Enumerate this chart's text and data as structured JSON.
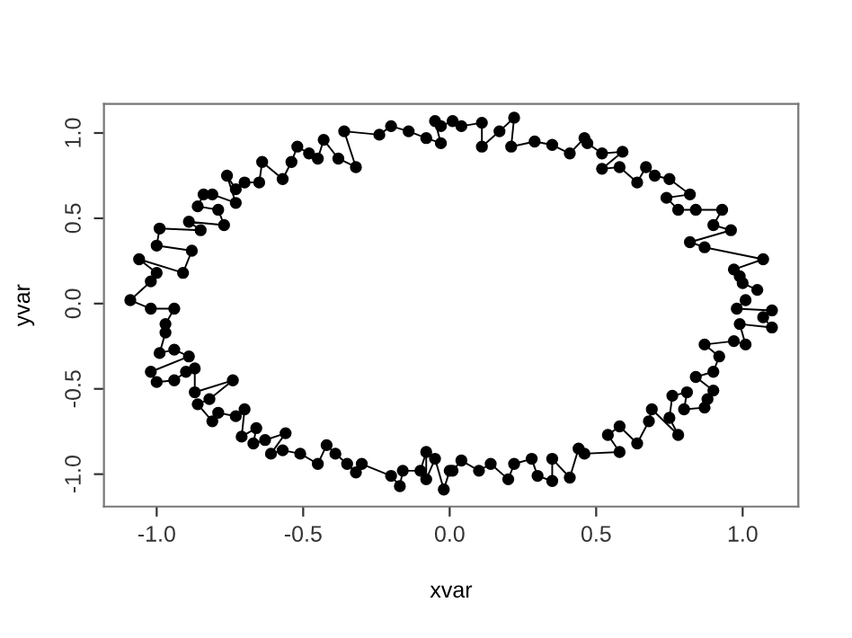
{
  "chart_data": {
    "type": "line",
    "xlabel": "xvar",
    "ylabel": "yvar",
    "marker": "circle",
    "line_style": "solid",
    "grid": false,
    "legend": false,
    "xlim": [
      -1.18,
      1.19
    ],
    "ylim": [
      -1.19,
      1.17
    ],
    "xticks": [
      {
        "value": -1,
        "label": "-1.0"
      },
      {
        "value": -0.5,
        "label": "-0.5"
      },
      {
        "value": 0,
        "label": "0.0"
      },
      0.5,
      {
        "value": 1,
        "label": "1.0"
      }
    ],
    "yticks": [
      {
        "value": -1,
        "label": "-1.0"
      },
      {
        "value": -0.5,
        "label": "-0.5"
      },
      {
        "value": 0,
        "label": "0.0"
      },
      0.5,
      {
        "value": 1,
        "label": "1.0"
      }
    ],
    "series": [
      {
        "color": "#000000",
        "x": [
          1.05,
          1.0,
          0.99,
          0.97,
          1.07,
          0.87,
          0.82,
          0.96,
          0.9,
          0.93,
          0.84,
          0.78,
          0.74,
          0.82,
          0.75,
          0.7,
          0.67,
          0.64,
          0.58,
          0.52,
          0.59,
          0.52,
          0.47,
          0.46,
          0.41,
          0.35,
          0.29,
          0.21,
          0.22,
          0.17,
          0.11,
          0.11,
          0.04,
          0.01,
          -0.03,
          -0.05,
          -0.03,
          -0.08,
          -0.14,
          -0.2,
          -0.24,
          -0.36,
          -0.32,
          -0.38,
          -0.43,
          -0.45,
          -0.48,
          -0.52,
          -0.54,
          -0.57,
          -0.64,
          -0.65,
          -0.7,
          -0.73,
          -0.76,
          -0.73,
          -0.81,
          -0.84,
          -0.86,
          -0.79,
          -0.77,
          -0.89,
          -0.85,
          -0.99,
          -1.0,
          -0.88,
          -0.91,
          -1.06,
          -1.0,
          -1.02,
          -1.09,
          -1.02,
          -0.94,
          -0.97,
          -0.97,
          -0.99,
          -0.94,
          -0.89,
          -1.02,
          -1.0,
          -0.94,
          -0.9,
          -0.87,
          -0.87,
          -0.74,
          -0.82,
          -0.86,
          -0.81,
          -0.79,
          -0.73,
          -0.7,
          -0.71,
          -0.66,
          -0.67,
          -0.63,
          -0.56,
          -0.61,
          -0.57,
          -0.51,
          -0.45,
          -0.42,
          -0.39,
          -0.35,
          -0.32,
          -0.3,
          -0.2,
          -0.17,
          -0.16,
          -0.1,
          -0.08,
          -0.08,
          -0.05,
          -0.02,
          0.0,
          0.01,
          0.04,
          0.1,
          0.14,
          0.2,
          0.22,
          0.28,
          0.3,
          0.35,
          0.35,
          0.41,
          0.44,
          0.46,
          0.58,
          0.54,
          0.58,
          0.64,
          0.68,
          0.69,
          0.78,
          0.75,
          0.76,
          0.81,
          0.8,
          0.87,
          0.88,
          0.9,
          0.84,
          0.9,
          0.92,
          0.87,
          0.97,
          1.01,
          0.99,
          1.1,
          1.07,
          1.1,
          0.98,
          1.01
        ],
        "values": [
          0.08,
          0.12,
          0.16,
          0.2,
          0.26,
          0.33,
          0.36,
          0.43,
          0.46,
          0.55,
          0.55,
          0.55,
          0.62,
          0.64,
          0.73,
          0.75,
          0.8,
          0.71,
          0.8,
          0.79,
          0.89,
          0.88,
          0.94,
          0.97,
          0.88,
          0.93,
          0.95,
          0.92,
          1.09,
          1.01,
          0.92,
          1.06,
          1.04,
          1.07,
          1.04,
          1.07,
          0.94,
          0.97,
          1.01,
          1.04,
          0.99,
          1.01,
          0.8,
          0.85,
          0.96,
          0.85,
          0.88,
          0.92,
          0.83,
          0.73,
          0.83,
          0.71,
          0.71,
          0.67,
          0.75,
          0.59,
          0.64,
          0.64,
          0.57,
          0.55,
          0.46,
          0.48,
          0.43,
          0.44,
          0.34,
          0.31,
          0.18,
          0.26,
          0.18,
          0.13,
          0.02,
          -0.03,
          -0.03,
          -0.12,
          -0.17,
          -0.29,
          -0.27,
          -0.31,
          -0.4,
          -0.46,
          -0.45,
          -0.4,
          -0.38,
          -0.52,
          -0.45,
          -0.56,
          -0.59,
          -0.69,
          -0.64,
          -0.66,
          -0.62,
          -0.78,
          -0.73,
          -0.82,
          -0.8,
          -0.76,
          -0.88,
          -0.86,
          -0.88,
          -0.94,
          -0.83,
          -0.88,
          -0.94,
          -0.99,
          -0.94,
          -1.01,
          -1.07,
          -0.98,
          -0.98,
          -0.87,
          -1.03,
          -0.91,
          -1.09,
          -0.98,
          -0.98,
          -0.92,
          -0.98,
          -0.94,
          -1.03,
          -0.94,
          -0.91,
          -1.01,
          -1.04,
          -0.91,
          -1.02,
          -0.85,
          -0.88,
          -0.87,
          -0.77,
          -0.72,
          -0.82,
          -0.69,
          -0.62,
          -0.77,
          -0.67,
          -0.54,
          -0.52,
          -0.62,
          -0.61,
          -0.56,
          -0.51,
          -0.43,
          -0.4,
          -0.31,
          -0.24,
          -0.22,
          -0.24,
          -0.12,
          -0.14,
          -0.08,
          -0.04,
          -0.03,
          0.02
        ]
      }
    ]
  }
}
